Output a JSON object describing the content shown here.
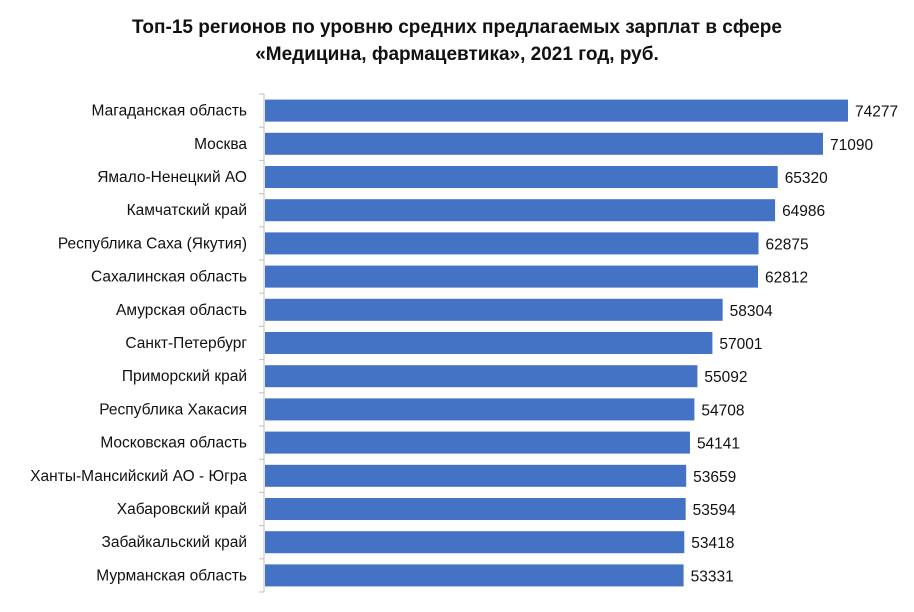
{
  "chart_data": {
    "type": "bar",
    "orientation": "horizontal",
    "title_line1": "Топ-15 регионов по уровню средних предлагаемых зарплат в сфере",
    "title_line2": "«Медицина, фармацевтика», 2021 год, руб.",
    "categories": [
      "Магаданская область",
      "Москва",
      "Ямало-Ненецкий АО",
      "Камчатский край",
      "Республика Саха (Якутия)",
      "Сахалинская область",
      "Амурская область",
      "Санкт-Петербург",
      "Приморский край",
      "Республика Хакасия",
      "Московская область",
      "Ханты-Мансийский АО - Югра",
      "Хабаровский край",
      "Забайкальский край",
      "Мурманская область"
    ],
    "values": [
      74277,
      71090,
      65320,
      64986,
      62875,
      62812,
      58304,
      57001,
      55092,
      54708,
      54141,
      53659,
      53594,
      53418,
      53331
    ],
    "xlim": [
      0,
      74277
    ],
    "grid": false,
    "legend": "none",
    "bar_color": "#4472c4"
  }
}
